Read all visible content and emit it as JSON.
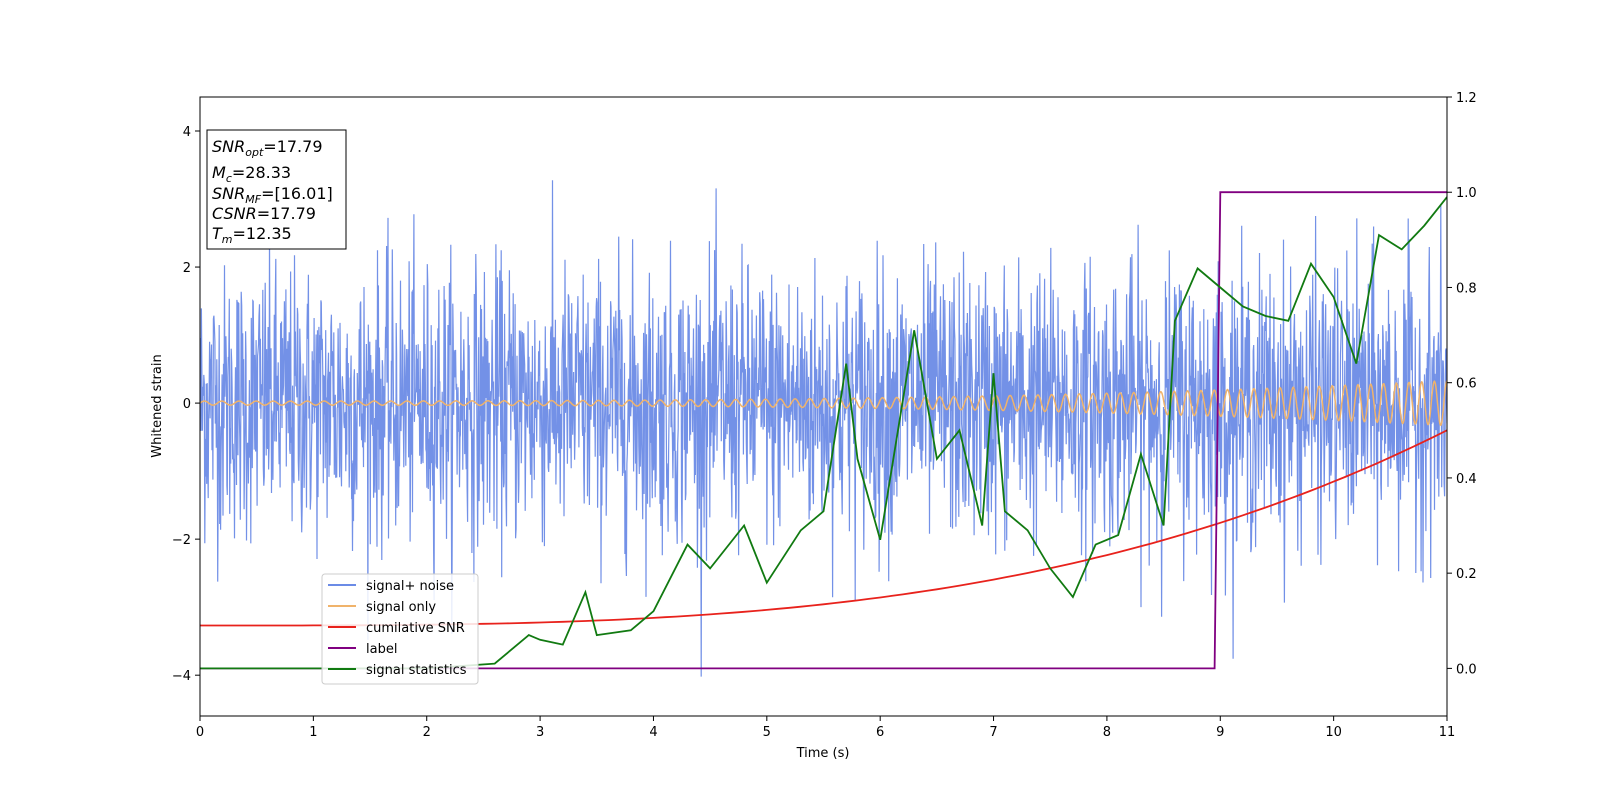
{
  "chart_data": {
    "type": "line",
    "xlabel": "Time (s)",
    "ylabel_left": "Whitened strain",
    "xlim": [
      0,
      11
    ],
    "ylim_left": [
      -4.6,
      4.5
    ],
    "ylim_right": [
      -0.1,
      1.2
    ],
    "x_ticks": [
      "0",
      "1",
      "2",
      "3",
      "4",
      "5",
      "6",
      "7",
      "8",
      "9",
      "10",
      "11"
    ],
    "y_left_ticks": [
      "-4",
      "-2",
      "0",
      "2",
      "4"
    ],
    "y_right_ticks": [
      "0.0",
      "0.2",
      "0.4",
      "0.6",
      "0.8",
      "1.0",
      "1.2"
    ],
    "grid": false,
    "legend_position": "lower-left",
    "info_box": [
      {
        "main": "SNR",
        "sub": "opt",
        "rest": "=17.79"
      },
      {
        "main": "M",
        "sub": "c",
        "rest": "=28.33"
      },
      {
        "main": "SNR",
        "sub": "MF",
        "rest": "=[16.01]"
      },
      {
        "main": "CSNR",
        "sub": "",
        "rest": "=17.79"
      },
      {
        "main": "T",
        "sub": "m",
        "rest": "=12.35"
      }
    ],
    "series": [
      {
        "name": "signal+ noise",
        "color": "#6b8be6",
        "axis": "left",
        "description_values": {
          "noise_std": 1.0,
          "peak_max": 4.05,
          "peak_min": -4.15
        }
      },
      {
        "name": "signal only",
        "color": "#f0b36b",
        "axis": "left",
        "amplitude_start": 0.03,
        "amplitude_end": 0.33
      },
      {
        "name": "cumilative SNR",
        "color": "#e8221c",
        "axis": "right",
        "x": [
          0,
          1,
          2,
          3,
          4,
          5,
          6,
          7,
          8,
          9,
          10,
          11
        ],
        "y": [
          0.09,
          0.1,
          0.12,
          0.14,
          0.15,
          0.17,
          0.19,
          0.21,
          0.24,
          0.28,
          0.36,
          0.5
        ]
      },
      {
        "name": "label",
        "color": "#800080",
        "axis": "right",
        "x": [
          0,
          8.95,
          9.0,
          11
        ],
        "y": [
          0.0,
          0.0,
          1.0,
          1.0
        ]
      },
      {
        "name": "signal statistics",
        "color": "#117a11",
        "axis": "right",
        "x": [
          0,
          1,
          2,
          2.6,
          2.9,
          3.0,
          3.2,
          3.4,
          3.5,
          3.8,
          4.0,
          4.3,
          4.5,
          4.8,
          5.0,
          5.3,
          5.5,
          5.7,
          5.8,
          6.0,
          6.3,
          6.5,
          6.7,
          6.9,
          7.0,
          7.1,
          7.3,
          7.5,
          7.7,
          7.9,
          8.1,
          8.3,
          8.5,
          8.6,
          8.8,
          9.0,
          9.2,
          9.4,
          9.6,
          9.8,
          10.0,
          10.2,
          10.4,
          10.6,
          10.8,
          11.0
        ],
        "y": [
          0.0,
          0.0,
          0.0,
          0.01,
          0.07,
          0.06,
          0.05,
          0.16,
          0.07,
          0.08,
          0.12,
          0.26,
          0.21,
          0.3,
          0.18,
          0.29,
          0.33,
          0.64,
          0.44,
          0.27,
          0.71,
          0.44,
          0.5,
          0.3,
          0.62,
          0.33,
          0.29,
          0.21,
          0.15,
          0.26,
          0.28,
          0.45,
          0.3,
          0.73,
          0.84,
          0.8,
          0.76,
          0.74,
          0.73,
          0.85,
          0.78,
          0.64,
          0.91,
          0.88,
          0.93,
          0.99
        ]
      }
    ]
  }
}
